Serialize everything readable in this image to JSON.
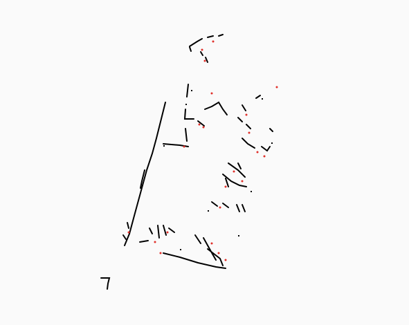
{
  "map": {
    "background": "#fafafa",
    "wall_color": "#000000",
    "scan_point_color": "#e0302a",
    "description_visible_text": ""
  }
}
